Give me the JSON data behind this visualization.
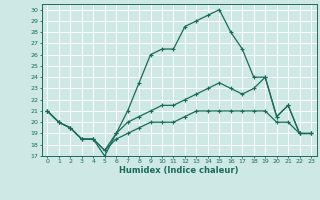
{
  "xlabel": "Humidex (Indice chaleur)",
  "bg_color": "#cde8e5",
  "line_color": "#1a6b5a",
  "grid_color": "#ffffff",
  "xlim": [
    -0.5,
    23.5
  ],
  "ylim": [
    17,
    30.5
  ],
  "yticks": [
    17,
    18,
    19,
    20,
    21,
    22,
    23,
    24,
    25,
    26,
    27,
    28,
    29,
    30
  ],
  "xticks": [
    0,
    1,
    2,
    3,
    4,
    5,
    6,
    7,
    8,
    9,
    10,
    11,
    12,
    13,
    14,
    15,
    16,
    17,
    18,
    19,
    20,
    21,
    22,
    23
  ],
  "line1_x": [
    0,
    1,
    2,
    3,
    4,
    5,
    6,
    7,
    8,
    9,
    10,
    11,
    12,
    13,
    14,
    15,
    16,
    17,
    18,
    19,
    20,
    21,
    22,
    23
  ],
  "line1_y": [
    21,
    20,
    19.5,
    18.5,
    18.5,
    17,
    19,
    21,
    23.5,
    26,
    26.5,
    26.5,
    28.5,
    29,
    29.5,
    30,
    28,
    26.5,
    24,
    24,
    20.5,
    21.5,
    19,
    19
  ],
  "line2_x": [
    0,
    1,
    2,
    3,
    4,
    5,
    6,
    7,
    8,
    9,
    10,
    11,
    12,
    13,
    14,
    15,
    16,
    17,
    18,
    19,
    20,
    21,
    22,
    23
  ],
  "line2_y": [
    21,
    20,
    19.5,
    18.5,
    18.5,
    17.5,
    19,
    20,
    20.5,
    21,
    21.5,
    21.5,
    22,
    22.5,
    23,
    23.5,
    23,
    22.5,
    23,
    24,
    20.5,
    21.5,
    19,
    19
  ],
  "line3_x": [
    0,
    1,
    2,
    3,
    4,
    5,
    6,
    7,
    8,
    9,
    10,
    11,
    12,
    13,
    14,
    15,
    16,
    17,
    18,
    19,
    20,
    21,
    22,
    23
  ],
  "line3_y": [
    21,
    20,
    19.5,
    18.5,
    18.5,
    17.5,
    18.5,
    19,
    19.5,
    20,
    20,
    20,
    20.5,
    21,
    21,
    21,
    21,
    21,
    21,
    21,
    20,
    20,
    19,
    19
  ]
}
